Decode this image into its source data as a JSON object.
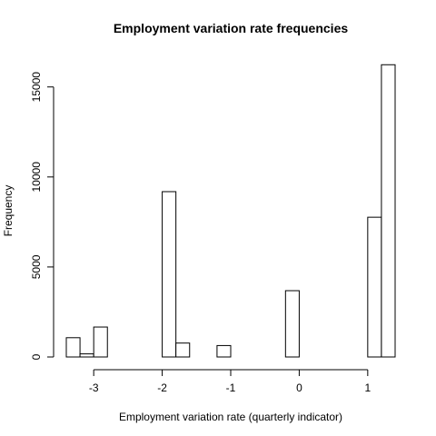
{
  "chart_data": {
    "type": "bar",
    "title": "Employment variation rate frequencies",
    "xlabel": "Employment variation rate (quarterly indicator)",
    "ylabel": "Frequency",
    "xlim": [
      -3.4,
      1.4
    ],
    "ylim": [
      0,
      16500
    ],
    "x_ticks": [
      -3,
      -2,
      -1,
      0,
      1
    ],
    "y_ticks": [
      0,
      5000,
      10000,
      15000
    ],
    "bin_width": 0.2,
    "bins": [
      {
        "start": -3.4,
        "end": -3.2,
        "count": 1070
      },
      {
        "start": -3.2,
        "end": -3.0,
        "count": 172
      },
      {
        "start": -3.0,
        "end": -2.8,
        "count": 1663
      },
      {
        "start": -2.8,
        "end": -2.6,
        "count": 0
      },
      {
        "start": -2.6,
        "end": -2.4,
        "count": 0
      },
      {
        "start": -2.4,
        "end": -2.2,
        "count": 0
      },
      {
        "start": -2.2,
        "end": -2.0,
        "count": 0
      },
      {
        "start": -2.0,
        "end": -1.8,
        "count": 9184
      },
      {
        "start": -1.8,
        "end": -1.6,
        "count": 773
      },
      {
        "start": -1.6,
        "end": -1.4,
        "count": 0
      },
      {
        "start": -1.4,
        "end": -1.2,
        "count": 0
      },
      {
        "start": -1.2,
        "end": -1.0,
        "count": 635
      },
      {
        "start": -1.0,
        "end": -0.8,
        "count": 0
      },
      {
        "start": -0.8,
        "end": -0.6,
        "count": 0
      },
      {
        "start": -0.6,
        "end": -0.4,
        "count": 0
      },
      {
        "start": -0.4,
        "end": -0.2,
        "count": 0
      },
      {
        "start": -0.2,
        "end": 0.0,
        "count": 3683
      },
      {
        "start": 0.0,
        "end": 0.2,
        "count": 0
      },
      {
        "start": 0.2,
        "end": 0.4,
        "count": 0
      },
      {
        "start": 0.4,
        "end": 0.6,
        "count": 0
      },
      {
        "start": 0.6,
        "end": 0.8,
        "count": 0
      },
      {
        "start": 0.8,
        "end": 1.0,
        "count": 0
      },
      {
        "start": 1.0,
        "end": 1.2,
        "count": 7763
      },
      {
        "start": 1.2,
        "end": 1.4,
        "count": 16234
      }
    ]
  }
}
